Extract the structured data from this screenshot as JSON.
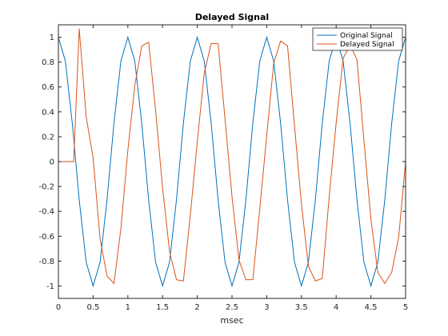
{
  "chart_data": {
    "type": "line",
    "title": "Delayed Signal",
    "xlabel": "msec",
    "ylabel": "",
    "xlim": [
      0,
      5
    ],
    "ylim": [
      -1.1,
      1.1
    ],
    "xticks": [
      0,
      0.5,
      1,
      1.5,
      2,
      2.5,
      3,
      3.5,
      4,
      4.5,
      5
    ],
    "xtick_labels": [
      "0",
      "0.5",
      "1",
      "1.5",
      "2",
      "2.5",
      "3",
      "3.5",
      "4",
      "4.5",
      "5"
    ],
    "yticks": [
      -1,
      -0.8,
      -0.6,
      -0.4,
      -0.2,
      0,
      0.2,
      0.4,
      0.6,
      0.8,
      1
    ],
    "ytick_labels": [
      "-1",
      "-0.8",
      "-0.6",
      "-0.4",
      "-0.2",
      "0",
      "0.2",
      "0.4",
      "0.6",
      "0.8",
      "1"
    ],
    "grid": false,
    "legend_position": "top-right",
    "series": [
      {
        "name": "Original Signal",
        "color": "#0072BD",
        "x": [
          0,
          0.1,
          0.2,
          0.3,
          0.4,
          0.5,
          0.6,
          0.7,
          0.8,
          0.9,
          1.0,
          1.1,
          1.2,
          1.3,
          1.4,
          1.5,
          1.6,
          1.7,
          1.8,
          1.9,
          2.0,
          2.1,
          2.2,
          2.3,
          2.4,
          2.5,
          2.6,
          2.7,
          2.8,
          2.9,
          3.0,
          3.1,
          3.2,
          3.3,
          3.4,
          3.5,
          3.6,
          3.7,
          3.8,
          3.9,
          4.0,
          4.1,
          4.2,
          4.3,
          4.4,
          4.5,
          4.6,
          4.7,
          4.8,
          4.9,
          5.0
        ],
        "y": [
          1,
          0.809,
          0.309,
          -0.309,
          -0.809,
          -1,
          -0.809,
          -0.309,
          0.309,
          0.809,
          1,
          0.809,
          0.309,
          -0.309,
          -0.809,
          -1,
          -0.809,
          -0.309,
          0.309,
          0.809,
          1,
          0.809,
          0.309,
          -0.309,
          -0.809,
          -1,
          -0.809,
          -0.309,
          0.309,
          0.809,
          1,
          0.809,
          0.309,
          -0.309,
          -0.809,
          -1,
          -0.809,
          -0.309,
          0.309,
          0.809,
          1,
          0.809,
          0.309,
          -0.309,
          -0.809,
          -1,
          -0.809,
          -0.309,
          0.309,
          0.809,
          1
        ]
      },
      {
        "name": "Delayed Signal",
        "color": "#D95319",
        "x": [
          0,
          0.1,
          0.2,
          0.22,
          0.3,
          0.4,
          0.5,
          0.6,
          0.7,
          0.8,
          0.9,
          1.0,
          1.1,
          1.2,
          1.3,
          1.4,
          1.5,
          1.6,
          1.7,
          1.8,
          1.9,
          2.0,
          2.1,
          2.2,
          2.3,
          2.4,
          2.5,
          2.6,
          2.7,
          2.8,
          2.9,
          3.0,
          3.1,
          3.2,
          3.3,
          3.4,
          3.5,
          3.6,
          3.7,
          3.8,
          3.9,
          4.0,
          4.1,
          4.2,
          4.3,
          4.4,
          4.5,
          4.6,
          4.7,
          4.8,
          4.9,
          5.0
        ],
        "y": [
          0,
          0,
          0,
          0,
          1.07,
          0.36,
          0.03,
          -0.62,
          -0.92,
          -0.98,
          -0.54,
          0.09,
          0.61,
          0.93,
          0.96,
          0.41,
          -0.21,
          -0.72,
          -0.95,
          -0.96,
          -0.43,
          0.16,
          0.71,
          0.95,
          0.95,
          0.34,
          -0.28,
          -0.79,
          -0.95,
          -0.95,
          -0.38,
          0.21,
          0.79,
          0.97,
          0.93,
          0.29,
          -0.34,
          -0.84,
          -0.96,
          -0.94,
          -0.28,
          0.31,
          0.83,
          0.94,
          0.82,
          0.17,
          -0.46,
          -0.89,
          -0.98,
          -0.89,
          -0.61,
          0.0
        ]
      }
    ]
  }
}
